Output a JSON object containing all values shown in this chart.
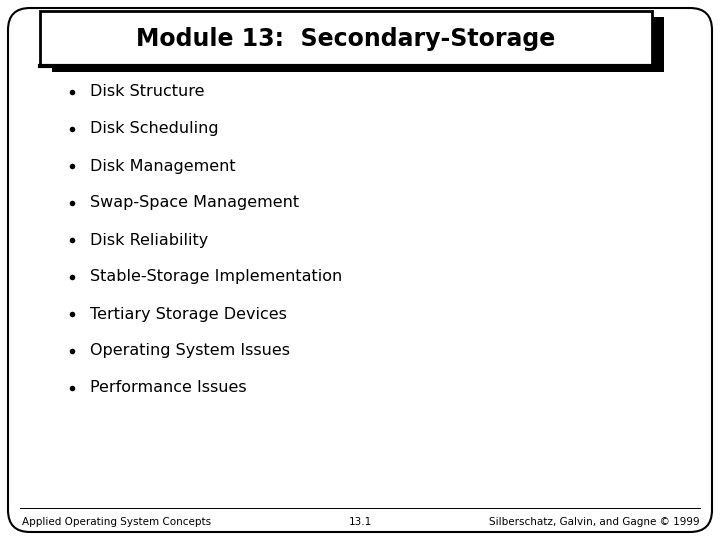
{
  "title": "Module 13:  Secondary-Storage",
  "bullet_items": [
    "Disk Structure",
    "Disk Scheduling",
    "Disk Management",
    "Swap-Space Management",
    "Disk Reliability",
    "Stable-Storage Implementation",
    "Tertiary Storage Devices",
    "Operating System Issues",
    "Performance Issues"
  ],
  "footer_left": "Applied Operating System Concepts",
  "footer_center": "13.1",
  "footer_right": "Silberschatz, Galvin, and Gagne © 1999",
  "bg_color": "#ffffff",
  "slide_border_color": "#000000",
  "title_box_color": "#ffffff",
  "text_color": "#000000",
  "title_fontsize": 17,
  "bullet_fontsize": 11.5,
  "footer_fontsize": 7.5,
  "slide_bg": "#f0f0f0"
}
